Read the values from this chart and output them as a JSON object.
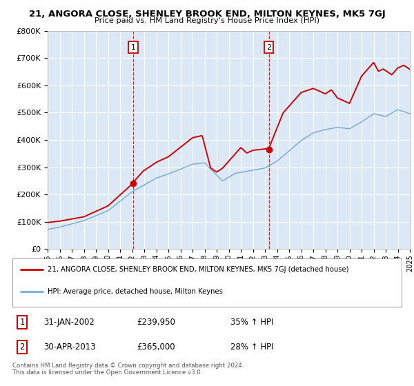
{
  "title": "21, ANGORA CLOSE, SHENLEY BROOK END, MILTON KEYNES, MK5 7GJ",
  "subtitle": "Price paid vs. HM Land Registry's House Price Index (HPI)",
  "background_color": "#ffffff",
  "plot_bg_color": "#dce8f5",
  "grid_color": "#ffffff",
  "red_line_color": "#cc0000",
  "blue_line_color": "#7aaed6",
  "sale1_year": 2002.08,
  "sale1_price": 239950,
  "sale1_date": "31-JAN-2002",
  "sale1_pct": "35%",
  "sale2_year": 2013.33,
  "sale2_price": 365000,
  "sale2_date": "30-APR-2013",
  "sale2_pct": "28%",
  "xmin": 1995,
  "xmax": 2025,
  "ymin": 0,
  "ymax": 800000,
  "yticks": [
    0,
    100000,
    200000,
    300000,
    400000,
    500000,
    600000,
    700000,
    800000
  ],
  "ytick_labels": [
    "£0",
    "£100K",
    "£200K",
    "£300K",
    "£400K",
    "£500K",
    "£600K",
    "£700K",
    "£800K"
  ],
  "legend_line1": "21, ANGORA CLOSE, SHENLEY BROOK END, MILTON KEYNES, MK5 7GJ (detached house)",
  "legend_line2": "HPI: Average price, detached house, Milton Keynes",
  "footer1": "Contains HM Land Registry data © Crown copyright and database right 2024.",
  "footer2": "This data is licensed under the Open Government Licence v3.0."
}
